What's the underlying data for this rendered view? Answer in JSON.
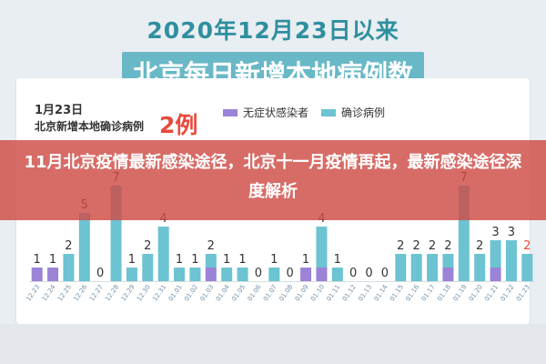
{
  "page": {
    "title_line1": "2020年12月23日以来",
    "title_line2": "北京每日新增本地病例数",
    "date": "1月23日",
    "subtitle": "北京新增本地确诊病例",
    "count": "2例",
    "headline": "11月北京疫情最新感染途径，北京十一月疫情再起，最新感染途径深度解析"
  },
  "colors": {
    "asymptomatic": "#9b83d7",
    "confirmed": "#6cc3d1",
    "highlight_label": "#e84a3d",
    "title_text": "#2f8f9f",
    "title_box": "#69b8c7",
    "overlay": "#ce4c46"
  },
  "chart_data": {
    "type": "bar",
    "stacked": true,
    "categories": [
      "12.23",
      "12.24",
      "12.25",
      "12.26",
      "12.27",
      "12.28",
      "12.29",
      "12.30",
      "12.31",
      "01.01",
      "01.02",
      "01.03",
      "01.04",
      "01.05",
      "01.06",
      "01.07",
      "01.08",
      "01.09",
      "01.10",
      "01.11",
      "01.12",
      "01.13",
      "01.14",
      "01.15",
      "01.16",
      "01.17",
      "01.18",
      "01.19",
      "01.20",
      "01.21",
      "01.22",
      "01.23"
    ],
    "series": [
      {
        "name": "无症状感染者",
        "values": [
          1,
          1,
          0,
          0,
          0,
          0,
          0,
          0,
          0,
          0,
          0,
          1,
          0,
          0,
          0,
          0,
          0,
          1,
          1,
          0,
          0,
          0,
          0,
          0,
          0,
          0,
          1,
          0,
          0,
          1,
          0,
          0
        ]
      },
      {
        "name": "确诊病例",
        "values": [
          0,
          0,
          2,
          5,
          0,
          7,
          1,
          2,
          4,
          1,
          1,
          1,
          1,
          1,
          0,
          1,
          0,
          0,
          3,
          1,
          0,
          0,
          0,
          2,
          2,
          2,
          1,
          7,
          2,
          2,
          3,
          2
        ]
      }
    ],
    "totals": [
      1,
      1,
      2,
      5,
      0,
      7,
      1,
      2,
      4,
      1,
      1,
      2,
      1,
      1,
      0,
      1,
      0,
      1,
      4,
      1,
      0,
      0,
      0,
      2,
      2,
      2,
      2,
      7,
      2,
      3,
      3,
      2
    ],
    "ylim": [
      0,
      7
    ],
    "legend_position": "top",
    "grid": false
  }
}
